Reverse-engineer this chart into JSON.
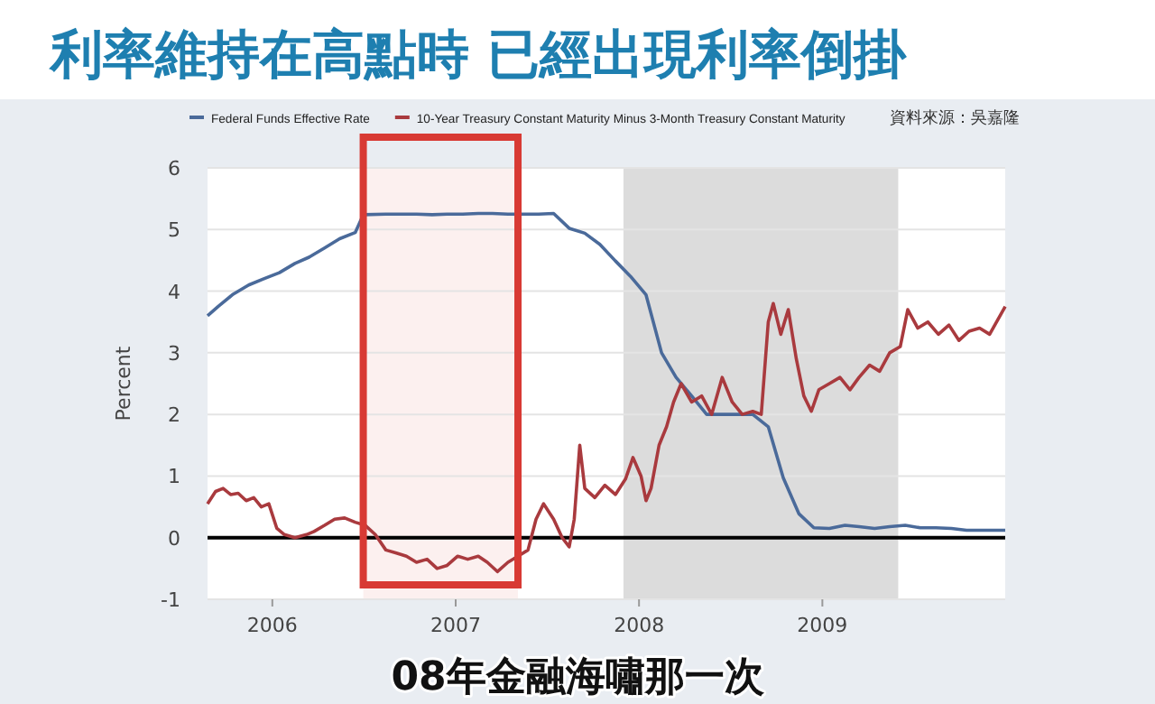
{
  "chart_data": {
    "type": "line",
    "title": "利率維持在高點時 已經出現利率倒掛",
    "ylabel": "Percent",
    "annotations": [
      "資料來源：吳嘉隆",
      "08年金融海嘯那一次"
    ],
    "xlim": [
      "2005-08-25",
      "2009-12-31"
    ],
    "xticks": [
      {
        "value": "2006-01-01",
        "label": "2006"
      },
      {
        "value": "2007-01-01",
        "label": "2007"
      },
      {
        "value": "2008-01-01",
        "label": "2008"
      },
      {
        "value": "2009-01-01",
        "label": "2009"
      }
    ],
    "ylim": [
      -1,
      6
    ],
    "yticks": [
      -1,
      0,
      1,
      2,
      3,
      4,
      5,
      6
    ],
    "grid": "y",
    "legend": "top left",
    "ref_lines": [
      {
        "axis": "y",
        "value": 0,
        "color": "#000000"
      }
    ],
    "bands": [
      {
        "axis": "x",
        "from": "2007-12-01",
        "to": "2009-06-01",
        "color": "#dcdcdc"
      },
      {
        "axis": "x",
        "from": "2006-07-01",
        "to": "2007-05-05",
        "color": "#d83a34"
      }
    ],
    "series": [
      {
        "name": "Federal Funds Effective Rate",
        "color": "#4a6a9a",
        "x": [
          "2005-08-25",
          "2005-09-15",
          "2005-10-15",
          "2005-11-15",
          "2005-12-15",
          "2006-01-15",
          "2006-02-15",
          "2006-03-15",
          "2006-04-15",
          "2006-05-15",
          "2006-06-15",
          "2006-07-01",
          "2006-08-15",
          "2006-09-15",
          "2006-10-15",
          "2006-11-15",
          "2006-12-15",
          "2007-01-15",
          "2007-02-15",
          "2007-03-15",
          "2007-04-15",
          "2007-05-15",
          "2007-06-15",
          "2007-07-15",
          "2007-08-15",
          "2007-09-15",
          "2007-10-15",
          "2007-11-15",
          "2007-12-15",
          "2008-01-15",
          "2008-02-15",
          "2008-03-15",
          "2008-04-15",
          "2008-05-15",
          "2008-06-15",
          "2008-07-15",
          "2008-08-15",
          "2008-09-15",
          "2008-10-15",
          "2008-11-15",
          "2008-12-15",
          "2009-01-15",
          "2009-02-15",
          "2009-03-15",
          "2009-04-15",
          "2009-05-15",
          "2009-06-15",
          "2009-07-15",
          "2009-08-15",
          "2009-09-15",
          "2009-10-15",
          "2009-11-15",
          "2009-12-31"
        ],
        "values": [
          3.6,
          3.75,
          3.95,
          4.1,
          4.2,
          4.3,
          4.45,
          4.55,
          4.7,
          4.85,
          4.95,
          5.24,
          5.25,
          5.25,
          5.25,
          5.24,
          5.25,
          5.25,
          5.26,
          5.26,
          5.25,
          5.25,
          5.25,
          5.26,
          5.02,
          4.94,
          4.76,
          4.49,
          4.24,
          3.94,
          3.0,
          2.6,
          2.3,
          2.0,
          2.0,
          2.0,
          2.0,
          1.8,
          0.97,
          0.39,
          0.16,
          0.15,
          0.2,
          0.18,
          0.15,
          0.18,
          0.2,
          0.16,
          0.16,
          0.15,
          0.12,
          0.12,
          0.12
        ]
      },
      {
        "name": "10-Year Treasury Constant Maturity Minus 3-Month Treasury Constant Maturity",
        "color": "#a93a3e",
        "x": [
          "2005-08-25",
          "2005-09-10",
          "2005-09-25",
          "2005-10-10",
          "2005-10-25",
          "2005-11-10",
          "2005-11-25",
          "2005-12-10",
          "2005-12-25",
          "2006-01-10",
          "2006-01-25",
          "2006-02-15",
          "2006-03-10",
          "2006-03-25",
          "2006-04-15",
          "2006-05-05",
          "2006-05-25",
          "2006-06-15",
          "2006-07-05",
          "2006-07-25",
          "2006-08-15",
          "2006-09-05",
          "2006-09-25",
          "2006-10-15",
          "2006-11-05",
          "2006-11-25",
          "2006-12-15",
          "2007-01-05",
          "2007-01-25",
          "2007-02-15",
          "2007-03-05",
          "2007-03-25",
          "2007-04-15",
          "2007-05-05",
          "2007-05-25",
          "2007-06-10",
          "2007-06-25",
          "2007-07-15",
          "2007-08-01",
          "2007-08-15",
          "2007-08-25",
          "2007-09-05",
          "2007-09-15",
          "2007-10-05",
          "2007-10-25",
          "2007-11-15",
          "2007-12-05",
          "2007-12-20",
          "2008-01-05",
          "2008-01-15",
          "2008-01-25",
          "2008-02-10",
          "2008-02-25",
          "2008-03-10",
          "2008-03-25",
          "2008-04-15",
          "2008-05-05",
          "2008-05-25",
          "2008-06-15",
          "2008-07-05",
          "2008-07-25",
          "2008-08-15",
          "2008-09-01",
          "2008-09-15",
          "2008-09-25",
          "2008-10-10",
          "2008-10-25",
          "2008-11-10",
          "2008-11-25",
          "2008-12-10",
          "2008-12-25",
          "2009-01-15",
          "2009-02-05",
          "2009-02-25",
          "2009-03-15",
          "2009-04-05",
          "2009-04-25",
          "2009-05-15",
          "2009-06-05",
          "2009-06-20",
          "2009-07-10",
          "2009-07-30",
          "2009-08-20",
          "2009-09-10",
          "2009-09-30",
          "2009-10-20",
          "2009-11-10",
          "2009-11-30",
          "2009-12-31"
        ],
        "values": [
          0.55,
          0.75,
          0.8,
          0.7,
          0.72,
          0.6,
          0.65,
          0.5,
          0.55,
          0.15,
          0.05,
          0.0,
          0.05,
          0.1,
          0.2,
          0.3,
          0.32,
          0.25,
          0.2,
          0.05,
          -0.2,
          -0.25,
          -0.3,
          -0.4,
          -0.35,
          -0.5,
          -0.45,
          -0.3,
          -0.35,
          -0.3,
          -0.4,
          -0.55,
          -0.4,
          -0.3,
          -0.2,
          0.3,
          0.55,
          0.3,
          0.0,
          -0.15,
          0.3,
          1.5,
          0.8,
          0.65,
          0.85,
          0.7,
          0.95,
          1.3,
          1.0,
          0.6,
          0.8,
          1.5,
          1.8,
          2.2,
          2.5,
          2.2,
          2.3,
          2.0,
          2.6,
          2.2,
          2.0,
          2.05,
          2.0,
          3.5,
          3.8,
          3.3,
          3.7,
          2.9,
          2.3,
          2.05,
          2.4,
          2.5,
          2.6,
          2.4,
          2.6,
          2.8,
          2.7,
          3.0,
          3.1,
          3.7,
          3.4,
          3.5,
          3.3,
          3.45,
          3.2,
          3.35,
          3.4,
          3.3,
          3.75
        ]
      }
    ]
  }
}
